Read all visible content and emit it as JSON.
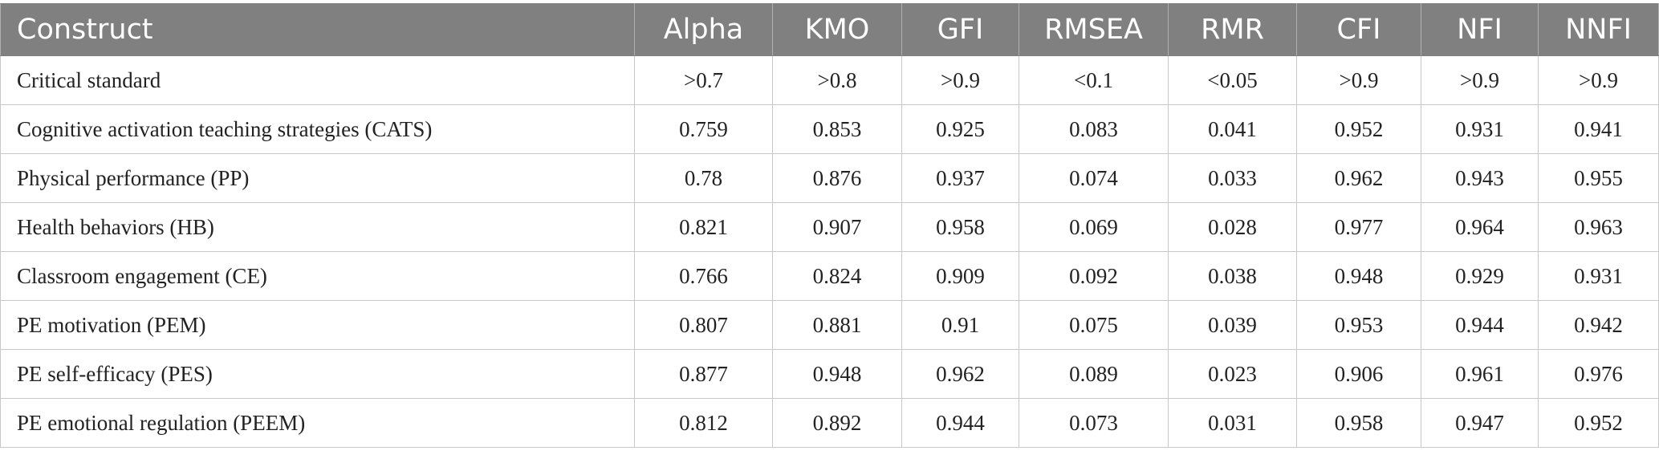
{
  "table": {
    "columns": [
      "Construct",
      "Alpha",
      "KMO",
      "GFI",
      "RMSEA",
      "RMR",
      "CFI",
      "NFI",
      "NNFI"
    ],
    "rows": [
      [
        "Critical standard",
        ">0.7",
        ">0.8",
        ">0.9",
        "<0.1",
        "<0.05",
        ">0.9",
        ">0.9",
        ">0.9"
      ],
      [
        "Cognitive activation teaching strategies (CATS)",
        "0.759",
        "0.853",
        "0.925",
        "0.083",
        "0.041",
        "0.952",
        "0.931",
        "0.941"
      ],
      [
        "Physical performance (PP)",
        "0.78",
        "0.876",
        "0.937",
        "0.074",
        "0.033",
        "0.962",
        "0.943",
        "0.955"
      ],
      [
        "Health behaviors (HB)",
        "0.821",
        "0.907",
        "0.958",
        "0.069",
        "0.028",
        "0.977",
        "0.964",
        "0.963"
      ],
      [
        "Classroom engagement (CE)",
        "0.766",
        "0.824",
        "0.909",
        "0.092",
        "0.038",
        "0.948",
        "0.929",
        "0.931"
      ],
      [
        "PE motivation (PEM)",
        "0.807",
        "0.881",
        "0.91",
        "0.075",
        "0.039",
        "0.953",
        "0.944",
        "0.942"
      ],
      [
        "PE self-efficacy (PES)",
        "0.877",
        "0.948",
        "0.962",
        "0.089",
        "0.023",
        "0.906",
        "0.961",
        "0.976"
      ],
      [
        "PE emotional regulation (PEEM)",
        "0.812",
        "0.892",
        "0.944",
        "0.073",
        "0.031",
        "0.958",
        "0.947",
        "0.952"
      ]
    ]
  }
}
